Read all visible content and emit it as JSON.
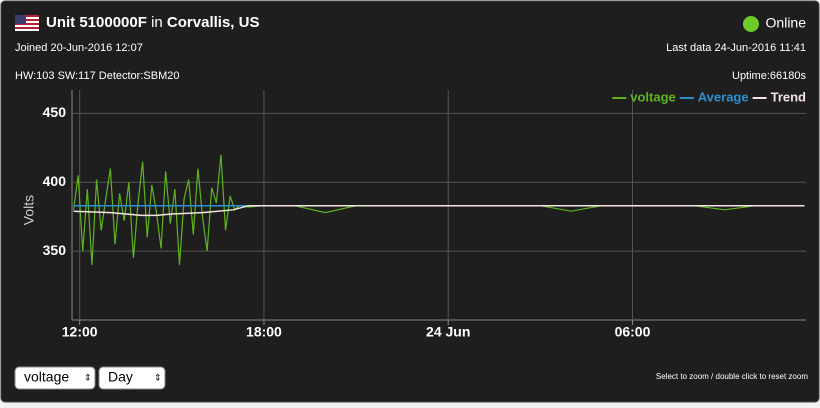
{
  "header": {
    "unit": "Unit 5100000F",
    "in": "in",
    "location": "Corvallis, US",
    "status": "Online",
    "joined": "Joined 20-Jun-2016 12:07",
    "last_data": "Last data 24-Jun-2016 11:41",
    "hardware": "HW:103 SW:117 Detector:SBM20",
    "uptime": "Uptime:66180s"
  },
  "chart_data": {
    "type": "line",
    "ylabel": "Volts",
    "legend": "top-right",
    "grid": true,
    "xlim": [
      11.75,
      35.65
    ],
    "ylim": [
      300,
      467
    ],
    "xticks": [
      {
        "value": 12,
        "label": "12:00"
      },
      {
        "value": 18,
        "label": "18:00"
      },
      {
        "value": 24,
        "label": "24 Jun"
      },
      {
        "value": 30,
        "label": "06:00"
      }
    ],
    "yticks": [
      350,
      400,
      450
    ],
    "series": [
      {
        "name": "voltage",
        "color": "#5fb31e",
        "x": [
          11.8,
          11.95,
          12.1,
          12.25,
          12.4,
          12.55,
          12.7,
          12.85,
          13,
          13.15,
          13.3,
          13.45,
          13.6,
          13.75,
          13.9,
          14.05,
          14.2,
          14.35,
          14.5,
          14.65,
          14.8,
          14.95,
          15.1,
          15.25,
          15.4,
          15.55,
          15.7,
          15.85,
          16,
          16.15,
          16.3,
          16.45,
          16.6,
          16.75,
          16.9,
          17.05,
          17.2,
          17.5,
          18,
          19,
          20,
          21,
          22,
          23,
          24,
          25,
          26,
          27,
          28,
          29,
          30,
          31,
          32,
          33,
          34,
          35,
          35.6
        ],
        "values": [
          380,
          405,
          350,
          395,
          340,
          402,
          365,
          388,
          410,
          355,
          392,
          372,
          400,
          345,
          385,
          415,
          360,
          398,
          378,
          352,
          408,
          370,
          395,
          340,
          388,
          402,
          362,
          410,
          375,
          350,
          396,
          385,
          420,
          365,
          390,
          380,
          383,
          382,
          383,
          383,
          378,
          383,
          383,
          383,
          383,
          383,
          383,
          383,
          379,
          383,
          383,
          383,
          383,
          380,
          383,
          383,
          383
        ]
      },
      {
        "name": "Average",
        "color": "#2a8fd0",
        "x": [
          11.8,
          35.6
        ],
        "values": [
          383,
          383
        ]
      },
      {
        "name": "Trend",
        "color": "#f3e3e3",
        "x": [
          11.8,
          13,
          14,
          14.5,
          15,
          16,
          17,
          17.5,
          35.6
        ],
        "values": [
          379,
          378,
          376,
          376,
          377,
          378,
          380,
          383,
          383
        ]
      }
    ]
  },
  "controls": {
    "field": "voltage",
    "period": "Day",
    "hint": "Select to zoom / double click to reset zoom"
  }
}
